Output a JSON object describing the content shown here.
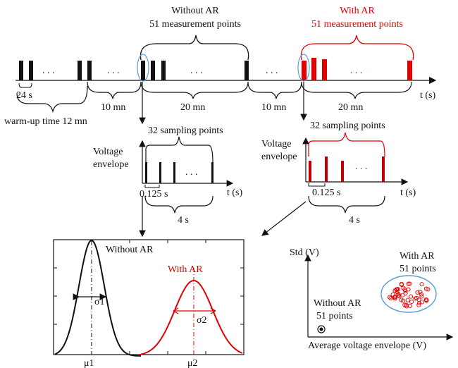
{
  "top_timeline": {
    "without_ar_title": "Without AR",
    "without_ar_points": "51 measurement points",
    "with_ar_title": "With AR",
    "with_ar_points": "51 measurement points",
    "axis_label": "t (s)",
    "dots": ". . .",
    "interval_24s": "24 s",
    "warmup": "warm-up time 12 mn",
    "gap1": "10 mn",
    "dur1": "20 mn",
    "gap2": "10 mn",
    "dur2": "20 mn"
  },
  "left_envelope": {
    "sampling": "32 sampling points",
    "ylabel_1": "Voltage",
    "ylabel_2": "envelope",
    "xlabel": "t (s)",
    "interval": "0.125 s",
    "duration": "4 s",
    "dots": ". . ."
  },
  "right_envelope": {
    "sampling": "32 sampling points",
    "ylabel_1": "Voltage",
    "ylabel_2": "envelope",
    "xlabel": "t (s)",
    "interval": "0.125 s",
    "duration": "4 s",
    "dots": ". . ."
  },
  "distribution": {
    "without_label": "Without AR",
    "with_label": "With AR",
    "sigma1": "σ1",
    "sigma2": "σ2",
    "mu1": "μ1",
    "mu2": "μ2"
  },
  "scatter": {
    "ylabel": "Std (V)",
    "xlabel": "Average voltage envelope (V)",
    "with_title": "With AR",
    "with_points": "51 points",
    "without_title": "Without AR",
    "without_points": "51 points"
  },
  "colors": {
    "black": "#111111",
    "red": "#e00000",
    "blue": "#5b9bd5"
  }
}
